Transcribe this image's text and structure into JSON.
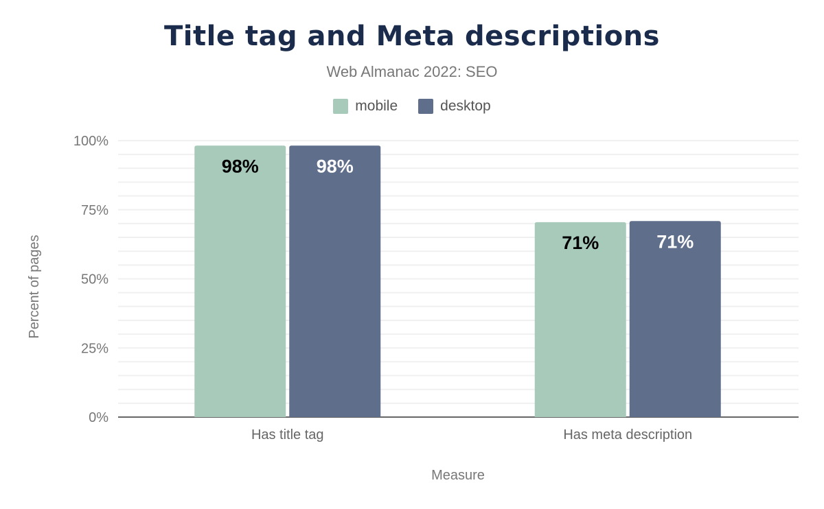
{
  "chart_data": {
    "type": "bar",
    "title": "Title tag and Meta descriptions",
    "subtitle": "Web Almanac 2022: SEO",
    "xlabel": "Measure",
    "ylabel": "Percent of pages",
    "categories": [
      "Has title tag",
      "Has meta description"
    ],
    "series": [
      {
        "name": "mobile",
        "color": "#a8cabb",
        "values": [
          98.2,
          70.5
        ],
        "labels": [
          "98%",
          "71%"
        ],
        "label_color": "#000000"
      },
      {
        "name": "desktop",
        "color": "#5f6e8a",
        "values": [
          98.2,
          70.9
        ],
        "labels": [
          "98%",
          "71%"
        ],
        "label_color": "#ffffff"
      }
    ],
    "ylim": [
      0,
      100
    ],
    "yticks": [
      0,
      25,
      50,
      75,
      100
    ],
    "ytick_labels": [
      "0%",
      "25%",
      "50%",
      "75%",
      "100%"
    ],
    "grid": true,
    "legend_position": "top"
  }
}
